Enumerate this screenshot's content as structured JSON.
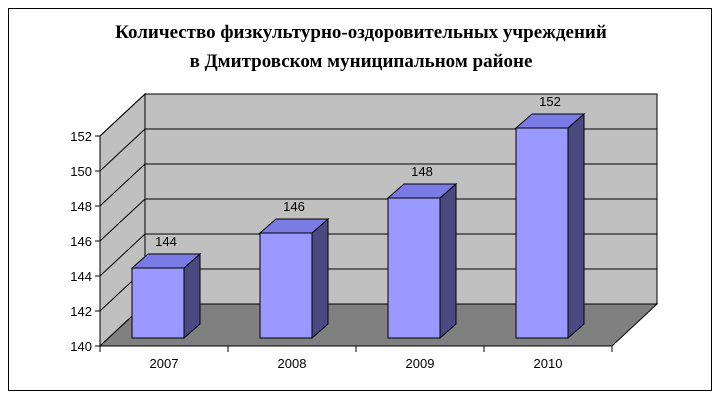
{
  "chart_data": {
    "type": "bar",
    "title": "Количество физкультурно-оздоровительных учреждений",
    "subtitle": "в Дмитровском муниципальном районе",
    "categories": [
      "2007",
      "2008",
      "2009",
      "2010"
    ],
    "values": [
      144,
      146,
      148,
      152
    ],
    "data_labels": [
      "144",
      "146",
      "148",
      "152"
    ],
    "ylim": [
      140,
      152
    ],
    "yticks": [
      "140",
      "142",
      "144",
      "146",
      "148",
      "150",
      "152"
    ],
    "grid": true,
    "legend": "none",
    "colors": {
      "bar_front": "#9999ff",
      "bar_top": "#7b7be6",
      "bar_side": "#4a4a80",
      "wall": "#c0c0c0",
      "floor": "#808080"
    }
  }
}
